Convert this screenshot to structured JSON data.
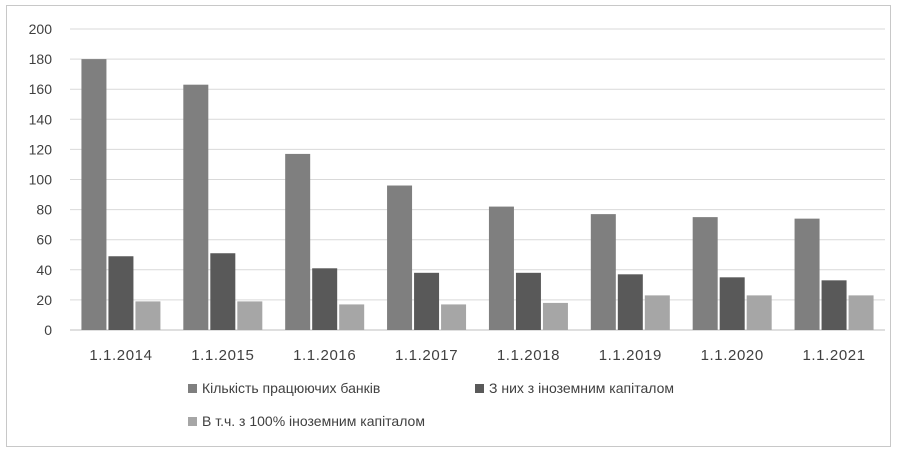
{
  "chart_data": {
    "type": "bar",
    "categories": [
      "1.1.2014",
      "1.1.2015",
      "1.1.2016",
      "1.1.2017",
      "1.1.2018",
      "1.1.2019",
      "1.1.2020",
      "1.1.2021"
    ],
    "series": [
      {
        "name": "Кількість працюючих банків",
        "values": [
          180,
          163,
          117,
          96,
          82,
          77,
          75,
          74
        ],
        "color": "#7f7f7f"
      },
      {
        "name": "З них з іноземним капіталом",
        "values": [
          49,
          51,
          41,
          38,
          38,
          37,
          35,
          33
        ],
        "color": "#595959"
      },
      {
        "name": "В т.ч. з 100% іноземним капіталом",
        "values": [
          19,
          19,
          17,
          17,
          18,
          23,
          23,
          23
        ],
        "color": "#a6a6a6"
      }
    ],
    "yticks": [
      "0",
      "20",
      "40",
      "60",
      "80",
      "100",
      "120",
      "140",
      "160",
      "180",
      "200"
    ],
    "ylim": [
      0,
      200
    ],
    "grid": true,
    "legend_position": "bottom"
  }
}
